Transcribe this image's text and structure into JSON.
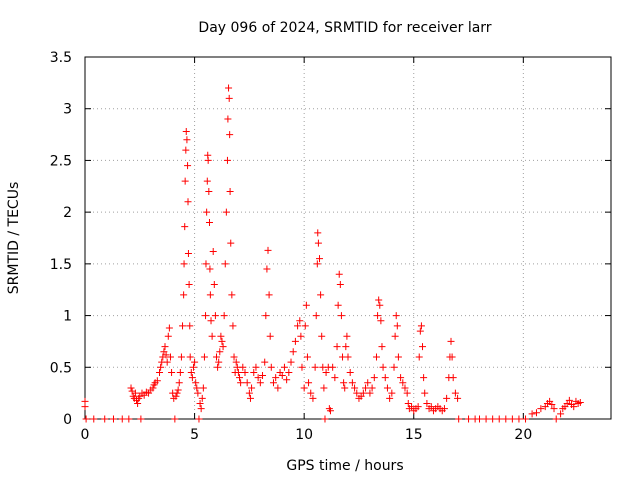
{
  "chart_data": {
    "type": "scatter",
    "title": "Day 096 of 2024, SRMTID for receiver larr",
    "xlabel": "GPS time / hours",
    "ylabel": "SRMTID / TECUs",
    "xlim": [
      0,
      24
    ],
    "ylim": [
      0,
      3.5
    ],
    "xticks": [
      "0",
      "5",
      "10",
      "15",
      "20"
    ],
    "yticks": [
      "0",
      "0.5",
      "1",
      "1.5",
      "2",
      "2.5",
      "3",
      "3.5"
    ],
    "grid": true,
    "marker": "plus",
    "color": "#ff0000",
    "series": [
      {
        "name": "SRMTID",
        "points": [
          [
            0.0,
            0.17
          ],
          [
            0.0,
            0.12
          ],
          [
            0.05,
            0.0
          ],
          [
            0.4,
            0.0
          ],
          [
            0.9,
            0.0
          ],
          [
            1.3,
            0.0
          ],
          [
            1.7,
            0.0
          ],
          [
            2.0,
            0.0
          ],
          [
            2.1,
            0.3
          ],
          [
            2.15,
            0.27
          ],
          [
            2.2,
            0.22
          ],
          [
            2.25,
            0.2
          ],
          [
            2.3,
            0.25
          ],
          [
            2.35,
            0.18
          ],
          [
            2.4,
            0.15
          ],
          [
            2.45,
            0.2
          ],
          [
            2.5,
            0.22
          ],
          [
            2.55,
            0.0
          ],
          [
            2.6,
            0.25
          ],
          [
            2.7,
            0.23
          ],
          [
            2.8,
            0.26
          ],
          [
            2.9,
            0.25
          ],
          [
            3.0,
            0.28
          ],
          [
            3.1,
            0.3
          ],
          [
            3.15,
            0.33
          ],
          [
            3.2,
            0.35
          ],
          [
            3.3,
            0.37
          ],
          [
            3.4,
            0.45
          ],
          [
            3.45,
            0.5
          ],
          [
            3.5,
            0.55
          ],
          [
            3.55,
            0.6
          ],
          [
            3.6,
            0.65
          ],
          [
            3.65,
            0.7
          ],
          [
            3.7,
            0.62
          ],
          [
            3.75,
            0.55
          ],
          [
            3.8,
            0.8
          ],
          [
            3.85,
            0.88
          ],
          [
            3.9,
            0.6
          ],
          [
            3.95,
            0.45
          ],
          [
            4.0,
            0.25
          ],
          [
            4.05,
            0.2
          ],
          [
            4.1,
            0.0
          ],
          [
            4.15,
            0.22
          ],
          [
            4.2,
            0.25
          ],
          [
            4.25,
            0.28
          ],
          [
            4.3,
            0.35
          ],
          [
            4.35,
            0.45
          ],
          [
            4.4,
            0.6
          ],
          [
            4.45,
            0.9
          ],
          [
            4.5,
            1.2
          ],
          [
            4.52,
            1.5
          ],
          [
            4.55,
            1.86
          ],
          [
            4.57,
            2.3
          ],
          [
            4.6,
            2.6
          ],
          [
            4.62,
            2.78
          ],
          [
            4.65,
            2.7
          ],
          [
            4.68,
            2.45
          ],
          [
            4.7,
            2.1
          ],
          [
            4.72,
            1.6
          ],
          [
            4.75,
            1.3
          ],
          [
            4.78,
            0.9
          ],
          [
            4.8,
            0.6
          ],
          [
            4.85,
            0.45
          ],
          [
            4.9,
            0.4
          ],
          [
            4.95,
            0.5
          ],
          [
            5.0,
            0.55
          ],
          [
            5.05,
            0.35
          ],
          [
            5.1,
            0.3
          ],
          [
            5.15,
            0.25
          ],
          [
            5.2,
            0.0
          ],
          [
            5.25,
            0.15
          ],
          [
            5.3,
            0.1
          ],
          [
            5.35,
            0.2
          ],
          [
            5.4,
            0.3
          ],
          [
            5.45,
            0.6
          ],
          [
            5.5,
            1.0
          ],
          [
            5.52,
            1.5
          ],
          [
            5.55,
            2.0
          ],
          [
            5.58,
            2.3
          ],
          [
            5.6,
            2.55
          ],
          [
            5.62,
            2.5
          ],
          [
            5.65,
            2.2
          ],
          [
            5.68,
            1.9
          ],
          [
            5.7,
            1.45
          ],
          [
            5.72,
            1.2
          ],
          [
            5.75,
            0.95
          ],
          [
            5.8,
            0.8
          ],
          [
            5.85,
            1.62
          ],
          [
            5.9,
            1.3
          ],
          [
            5.95,
            1.0
          ],
          [
            6.0,
            0.6
          ],
          [
            6.05,
            0.5
          ],
          [
            6.1,
            0.55
          ],
          [
            6.15,
            0.65
          ],
          [
            6.2,
            0.8
          ],
          [
            6.25,
            0.75
          ],
          [
            6.3,
            0.7
          ],
          [
            6.35,
            1.0
          ],
          [
            6.4,
            1.5
          ],
          [
            6.45,
            2.0
          ],
          [
            6.5,
            2.5
          ],
          [
            6.52,
            2.9
          ],
          [
            6.55,
            3.2
          ],
          [
            6.58,
            3.1
          ],
          [
            6.6,
            2.75
          ],
          [
            6.62,
            2.2
          ],
          [
            6.65,
            1.7
          ],
          [
            6.7,
            1.2
          ],
          [
            6.75,
            0.9
          ],
          [
            6.8,
            0.6
          ],
          [
            6.85,
            0.45
          ],
          [
            6.9,
            0.55
          ],
          [
            6.95,
            0.5
          ],
          [
            7.0,
            0.45
          ],
          [
            7.05,
            0.4
          ],
          [
            7.1,
            0.35
          ],
          [
            7.2,
            0.5
          ],
          [
            7.3,
            0.45
          ],
          [
            7.4,
            0.35
          ],
          [
            7.5,
            0.25
          ],
          [
            7.55,
            0.2
          ],
          [
            7.6,
            0.3
          ],
          [
            7.7,
            0.45
          ],
          [
            7.8,
            0.5
          ],
          [
            7.9,
            0.4
          ],
          [
            8.0,
            0.35
          ],
          [
            8.1,
            0.42
          ],
          [
            8.2,
            0.55
          ],
          [
            8.25,
            1.0
          ],
          [
            8.3,
            1.45
          ],
          [
            8.35,
            1.63
          ],
          [
            8.4,
            1.2
          ],
          [
            8.45,
            0.8
          ],
          [
            8.5,
            0.5
          ],
          [
            8.6,
            0.35
          ],
          [
            8.7,
            0.4
          ],
          [
            8.8,
            0.3
          ],
          [
            8.9,
            0.45
          ],
          [
            9.0,
            0.42
          ],
          [
            9.1,
            0.5
          ],
          [
            9.2,
            0.38
          ],
          [
            9.3,
            0.45
          ],
          [
            9.4,
            0.55
          ],
          [
            9.5,
            0.65
          ],
          [
            9.6,
            0.75
          ],
          [
            9.7,
            0.9
          ],
          [
            9.8,
            0.95
          ],
          [
            9.85,
            0.8
          ],
          [
            9.9,
            0.5
          ],
          [
            10.0,
            0.3
          ],
          [
            10.05,
            0.9
          ],
          [
            10.1,
            1.1
          ],
          [
            10.15,
            0.6
          ],
          [
            10.2,
            0.35
          ],
          [
            10.3,
            0.25
          ],
          [
            10.4,
            0.2
          ],
          [
            10.5,
            0.5
          ],
          [
            10.55,
            1.0
          ],
          [
            10.6,
            1.5
          ],
          [
            10.62,
            1.8
          ],
          [
            10.65,
            1.7
          ],
          [
            10.7,
            1.55
          ],
          [
            10.75,
            1.2
          ],
          [
            10.8,
            0.8
          ],
          [
            10.85,
            0.5
          ],
          [
            10.9,
            0.3
          ],
          [
            10.95,
            0.0
          ],
          [
            11.0,
            0.45
          ],
          [
            11.1,
            0.5
          ],
          [
            11.15,
            0.1
          ],
          [
            11.2,
            0.08
          ],
          [
            11.3,
            0.5
          ],
          [
            11.4,
            0.4
          ],
          [
            11.5,
            0.7
          ],
          [
            11.55,
            1.1
          ],
          [
            11.6,
            1.4
          ],
          [
            11.65,
            1.3
          ],
          [
            11.7,
            1.0
          ],
          [
            11.75,
            0.6
          ],
          [
            11.8,
            0.35
          ],
          [
            11.85,
            0.3
          ],
          [
            11.9,
            0.7
          ],
          [
            11.95,
            0.8
          ],
          [
            12.0,
            0.6
          ],
          [
            12.1,
            0.45
          ],
          [
            12.2,
            0.35
          ],
          [
            12.3,
            0.3
          ],
          [
            12.4,
            0.25
          ],
          [
            12.5,
            0.2
          ],
          [
            12.6,
            0.22
          ],
          [
            12.7,
            0.25
          ],
          [
            12.8,
            0.3
          ],
          [
            12.9,
            0.35
          ],
          [
            13.0,
            0.25
          ],
          [
            13.1,
            0.3
          ],
          [
            13.2,
            0.4
          ],
          [
            13.3,
            0.6
          ],
          [
            13.35,
            1.0
          ],
          [
            13.4,
            1.15
          ],
          [
            13.45,
            1.1
          ],
          [
            13.5,
            0.95
          ],
          [
            13.55,
            0.7
          ],
          [
            13.6,
            0.5
          ],
          [
            13.7,
            0.4
          ],
          [
            13.8,
            0.3
          ],
          [
            13.9,
            0.2
          ],
          [
            14.0,
            0.25
          ],
          [
            14.1,
            0.5
          ],
          [
            14.15,
            0.8
          ],
          [
            14.2,
            1.0
          ],
          [
            14.25,
            0.9
          ],
          [
            14.3,
            0.6
          ],
          [
            14.4,
            0.4
          ],
          [
            14.5,
            0.35
          ],
          [
            14.6,
            0.3
          ],
          [
            14.7,
            0.25
          ],
          [
            14.75,
            0.15
          ],
          [
            14.8,
            0.1
          ],
          [
            14.9,
            0.12
          ],
          [
            15.0,
            0.08
          ],
          [
            15.1,
            0.1
          ],
          [
            15.2,
            0.12
          ],
          [
            15.25,
            0.6
          ],
          [
            15.3,
            0.85
          ],
          [
            15.35,
            0.9
          ],
          [
            15.4,
            0.7
          ],
          [
            15.45,
            0.4
          ],
          [
            15.5,
            0.25
          ],
          [
            15.6,
            0.15
          ],
          [
            15.7,
            0.1
          ],
          [
            15.8,
            0.12
          ],
          [
            15.9,
            0.08
          ],
          [
            16.0,
            0.1
          ],
          [
            16.1,
            0.12
          ],
          [
            16.2,
            0.1
          ],
          [
            16.3,
            0.08
          ],
          [
            16.4,
            0.1
          ],
          [
            16.5,
            0.2
          ],
          [
            16.6,
            0.4
          ],
          [
            16.65,
            0.6
          ],
          [
            16.7,
            0.75
          ],
          [
            16.75,
            0.6
          ],
          [
            16.8,
            0.4
          ],
          [
            16.9,
            0.25
          ],
          [
            17.0,
            0.2
          ],
          [
            17.05,
            0.0
          ],
          [
            17.5,
            0.0
          ],
          [
            17.8,
            0.0
          ],
          [
            18.0,
            0.0
          ],
          [
            18.3,
            0.0
          ],
          [
            18.6,
            0.0
          ],
          [
            18.9,
            0.0
          ],
          [
            19.2,
            0.0
          ],
          [
            19.5,
            0.0
          ],
          [
            19.8,
            0.0
          ],
          [
            20.1,
            0.0
          ],
          [
            20.4,
            0.05
          ],
          [
            20.6,
            0.06
          ],
          [
            20.8,
            0.1
          ],
          [
            21.0,
            0.12
          ],
          [
            21.1,
            0.15
          ],
          [
            21.2,
            0.17
          ],
          [
            21.3,
            0.14
          ],
          [
            21.4,
            0.1
          ],
          [
            21.5,
            0.0
          ],
          [
            21.7,
            0.05
          ],
          [
            21.8,
            0.1
          ],
          [
            21.9,
            0.12
          ],
          [
            22.0,
            0.15
          ],
          [
            22.1,
            0.18
          ],
          [
            22.2,
            0.14
          ],
          [
            22.3,
            0.12
          ],
          [
            22.4,
            0.17
          ],
          [
            22.5,
            0.15
          ],
          [
            22.6,
            0.16
          ]
        ]
      }
    ]
  }
}
